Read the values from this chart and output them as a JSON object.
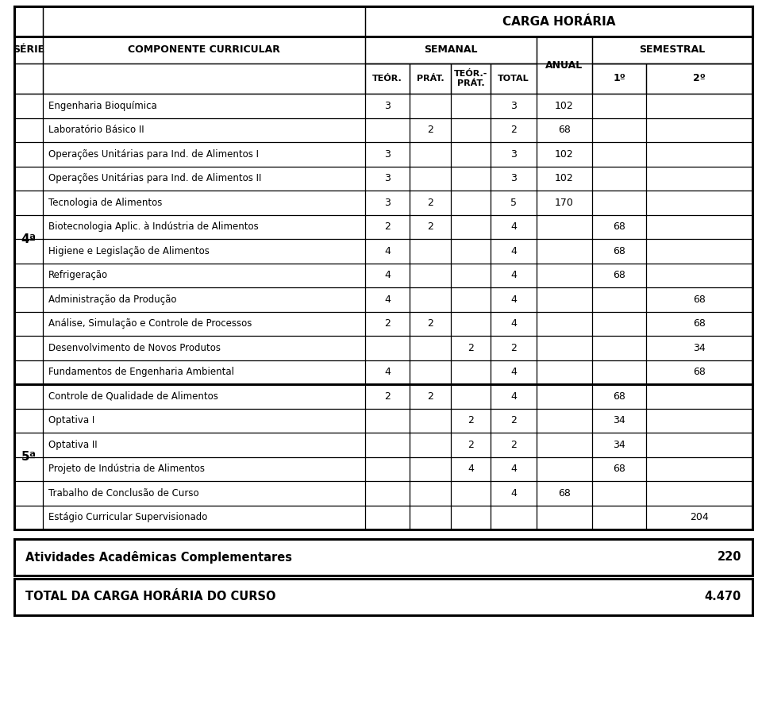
{
  "title_carga": "CARGA HORÁRIA",
  "header_serie": "SÉRIE",
  "header_comp": "COMPONENTE CURRICULAR",
  "header_semanal": "SEMANAL",
  "header_anual": "ANUAL",
  "header_semestral": "SEMESTRAL",
  "header_teor": "TEÓR.",
  "header_prat": "PRÁT.",
  "header_teorprat": "TEÓR.-\nPRÁT.",
  "header_total": "TOTAL",
  "header_1sem": "1º",
  "header_2sem": "2º",
  "rows": [
    {
      "serie": "4",
      "comp": "Engenharia Bioquímica",
      "teor": "3",
      "prat": "",
      "tp": "",
      "total": "3",
      "anual": "102",
      "s1": "",
      "s2": ""
    },
    {
      "serie": "4",
      "comp": "Laboratório Básico II",
      "teor": "",
      "prat": "2",
      "tp": "",
      "total": "2",
      "anual": "68",
      "s1": "",
      "s2": ""
    },
    {
      "serie": "4",
      "comp": "Operações Unitárias para Ind. de Alimentos I",
      "teor": "3",
      "prat": "",
      "tp": "",
      "total": "3",
      "anual": "102",
      "s1": "",
      "s2": ""
    },
    {
      "serie": "4",
      "comp": "Operações Unitárias para Ind. de Alimentos II",
      "teor": "3",
      "prat": "",
      "tp": "",
      "total": "3",
      "anual": "102",
      "s1": "",
      "s2": ""
    },
    {
      "serie": "4",
      "comp": "Tecnologia de Alimentos",
      "teor": "3",
      "prat": "2",
      "tp": "",
      "total": "5",
      "anual": "170",
      "s1": "",
      "s2": ""
    },
    {
      "serie": "4",
      "comp": "Biotecnologia Aplic. à Indústria de Alimentos",
      "teor": "2",
      "prat": "2",
      "tp": "",
      "total": "4",
      "anual": "",
      "s1": "68",
      "s2": ""
    },
    {
      "serie": "4",
      "comp": "Higiene e Legislação de Alimentos",
      "teor": "4",
      "prat": "",
      "tp": "",
      "total": "4",
      "anual": "",
      "s1": "68",
      "s2": ""
    },
    {
      "serie": "4",
      "comp": "Refrigeração",
      "teor": "4",
      "prat": "",
      "tp": "",
      "total": "4",
      "anual": "",
      "s1": "68",
      "s2": ""
    },
    {
      "serie": "4",
      "comp": "Administração da Produção",
      "teor": "4",
      "prat": "",
      "tp": "",
      "total": "4",
      "anual": "",
      "s1": "",
      "s2": "68"
    },
    {
      "serie": "4",
      "comp": "Análise, Simulação e Controle de Processos",
      "teor": "2",
      "prat": "2",
      "tp": "",
      "total": "4",
      "anual": "",
      "s1": "",
      "s2": "68"
    },
    {
      "serie": "4",
      "comp": "Desenvolvimento de Novos Produtos",
      "teor": "",
      "prat": "",
      "tp": "2",
      "total": "2",
      "anual": "",
      "s1": "",
      "s2": "34"
    },
    {
      "serie": "4",
      "comp": "Fundamentos de Engenharia Ambiental",
      "teor": "4",
      "prat": "",
      "tp": "",
      "total": "4",
      "anual": "",
      "s1": "",
      "s2": "68"
    },
    {
      "serie": "5",
      "comp": "Controle de Qualidade de Alimentos",
      "teor": "2",
      "prat": "2",
      "tp": "",
      "total": "4",
      "anual": "",
      "s1": "68",
      "s2": ""
    },
    {
      "serie": "5",
      "comp": "Optativa I",
      "teor": "",
      "prat": "",
      "tp": "2",
      "total": "2",
      "anual": "",
      "s1": "34",
      "s2": ""
    },
    {
      "serie": "5",
      "comp": "Optativa II",
      "teor": "",
      "prat": "",
      "tp": "2",
      "total": "2",
      "anual": "",
      "s1": "34",
      "s2": ""
    },
    {
      "serie": "5",
      "comp": "Projeto de Indústria de Alimentos",
      "teor": "",
      "prat": "",
      "tp": "4",
      "total": "4",
      "anual": "",
      "s1": "68",
      "s2": ""
    },
    {
      "serie": "5",
      "comp": "Trabalho de Conclusão de Curso",
      "teor": "",
      "prat": "",
      "tp": "",
      "total": "4",
      "anual": "68",
      "s1": "",
      "s2": ""
    },
    {
      "serie": "5",
      "comp": "Estágio Curricular Supervisionado",
      "teor": "",
      "prat": "",
      "tp": "",
      "total": "",
      "anual": "",
      "s1": "",
      "s2": "204"
    }
  ],
  "atividades_label": "Atividades Acadêmicas Complementares",
  "atividades_value": "220",
  "total_label": "TOTAL DA CARGA HORÁRIA DO CURSO",
  "total_value": "4.470"
}
